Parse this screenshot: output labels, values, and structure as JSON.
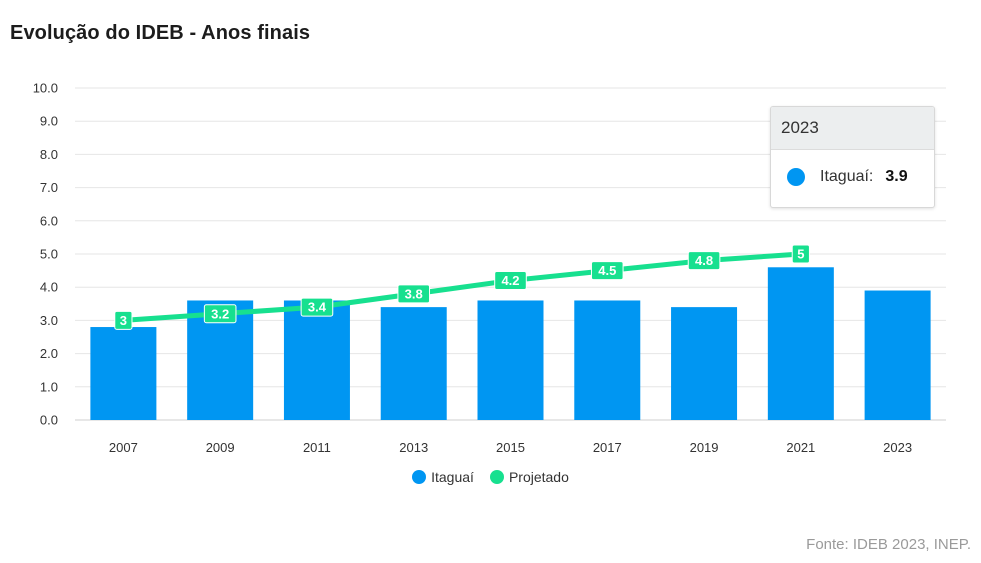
{
  "page": {
    "title": "Evolução do IDEB - Anos finais",
    "source": "Fonte: IDEB 2023, INEP."
  },
  "tooltip": {
    "header": "2023",
    "series_name": "Itaguaí:",
    "value": "3.9",
    "color": "#0096f2"
  },
  "legend": [
    {
      "name": "Itaguaí",
      "color": "#0096f2"
    },
    {
      "name": "Projetado",
      "color": "#17e08f"
    }
  ],
  "chart_data": {
    "type": "bar",
    "categories": [
      "2007",
      "2009",
      "2011",
      "2013",
      "2015",
      "2017",
      "2019",
      "2021",
      "2023"
    ],
    "series": [
      {
        "name": "Itaguaí",
        "type": "bar",
        "color": "#0096f2",
        "values": [
          2.8,
          3.6,
          3.6,
          3.4,
          3.6,
          3.6,
          3.4,
          4.6,
          3.9
        ]
      },
      {
        "name": "Projetado",
        "type": "line",
        "color": "#17e08f",
        "values": [
          3,
          3.2,
          3.4,
          3.8,
          4.2,
          4.5,
          4.8,
          5,
          null
        ],
        "data_labels": [
          "3",
          "3.2",
          "3.4",
          "3.8",
          "4.2",
          "4.5",
          "4.8",
          "5"
        ]
      }
    ],
    "y_ticks": [
      "0.0",
      "1.0",
      "2.0",
      "3.0",
      "4.0",
      "5.0",
      "6.0",
      "7.0",
      "8.0",
      "9.0",
      "10.0"
    ],
    "ylim": [
      0,
      10
    ],
    "grid": true,
    "legend_position": "bottom"
  }
}
